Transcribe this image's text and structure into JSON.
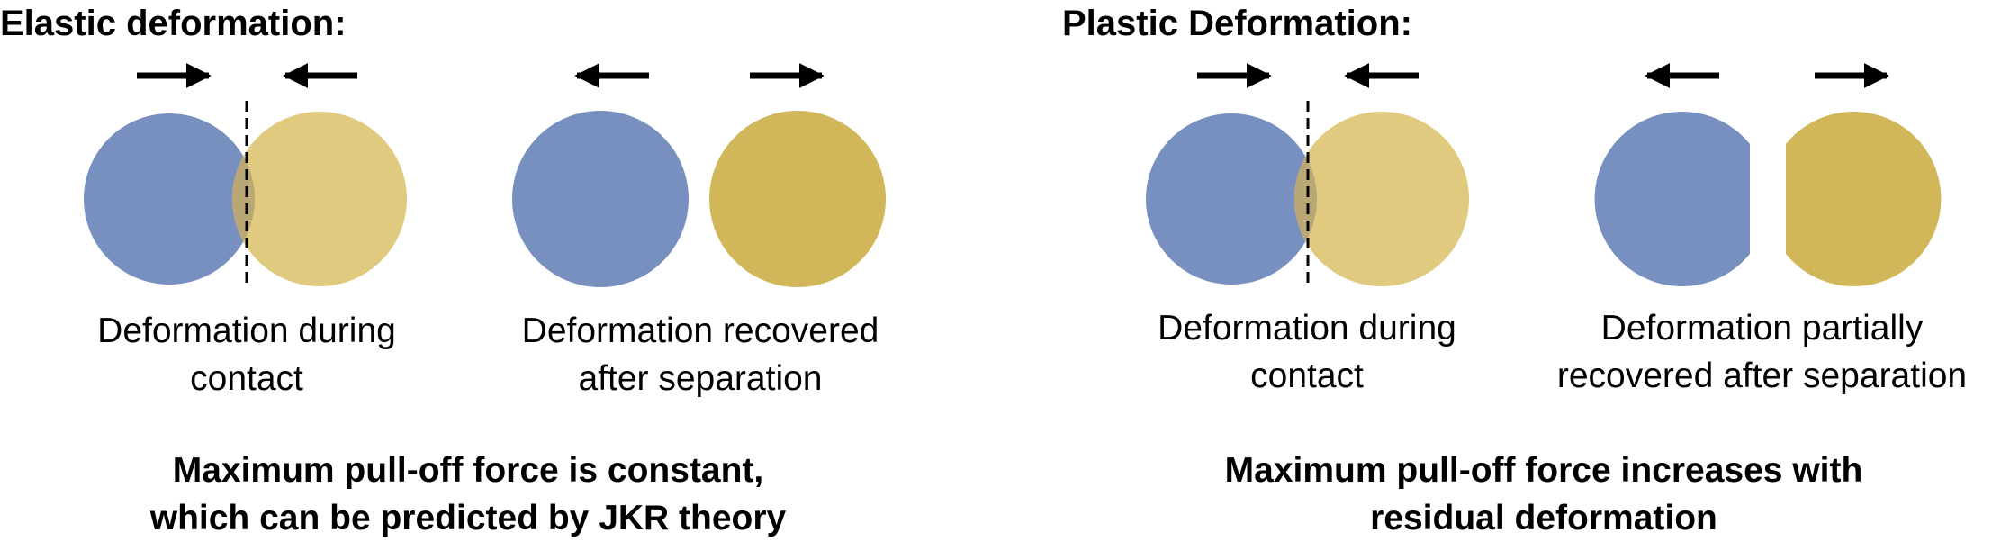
{
  "colors": {
    "blue": "#7790bf",
    "gold_light": "#dfca7f",
    "gold": "#d1b75a",
    "overlap": "#b9a876",
    "ink": "#000000"
  },
  "elastic": {
    "title": "Elastic deformation:",
    "contact": {
      "label_line1": "Deformation during",
      "label_line2": "contact"
    },
    "separated": {
      "label_line1": "Deformation recovered",
      "label_line2": "after separation"
    },
    "conclusion_line1": "Maximum pull-off force is constant,",
    "conclusion_line2": "which can be predicted by JKR theory"
  },
  "plastic": {
    "title": "Plastic Deformation:",
    "contact": {
      "label_line1": "Deformation during",
      "label_line2": "contact"
    },
    "separated": {
      "label_line1": "Deformation partially",
      "label_line2": "recovered after separation"
    },
    "conclusion_line1": "Maximum pull-off force increases with",
    "conclusion_line2": "residual deformation"
  },
  "icons": {
    "push_right": "arrow-right-icon",
    "push_left": "arrow-left-icon",
    "contact_line": "dashed-line"
  }
}
